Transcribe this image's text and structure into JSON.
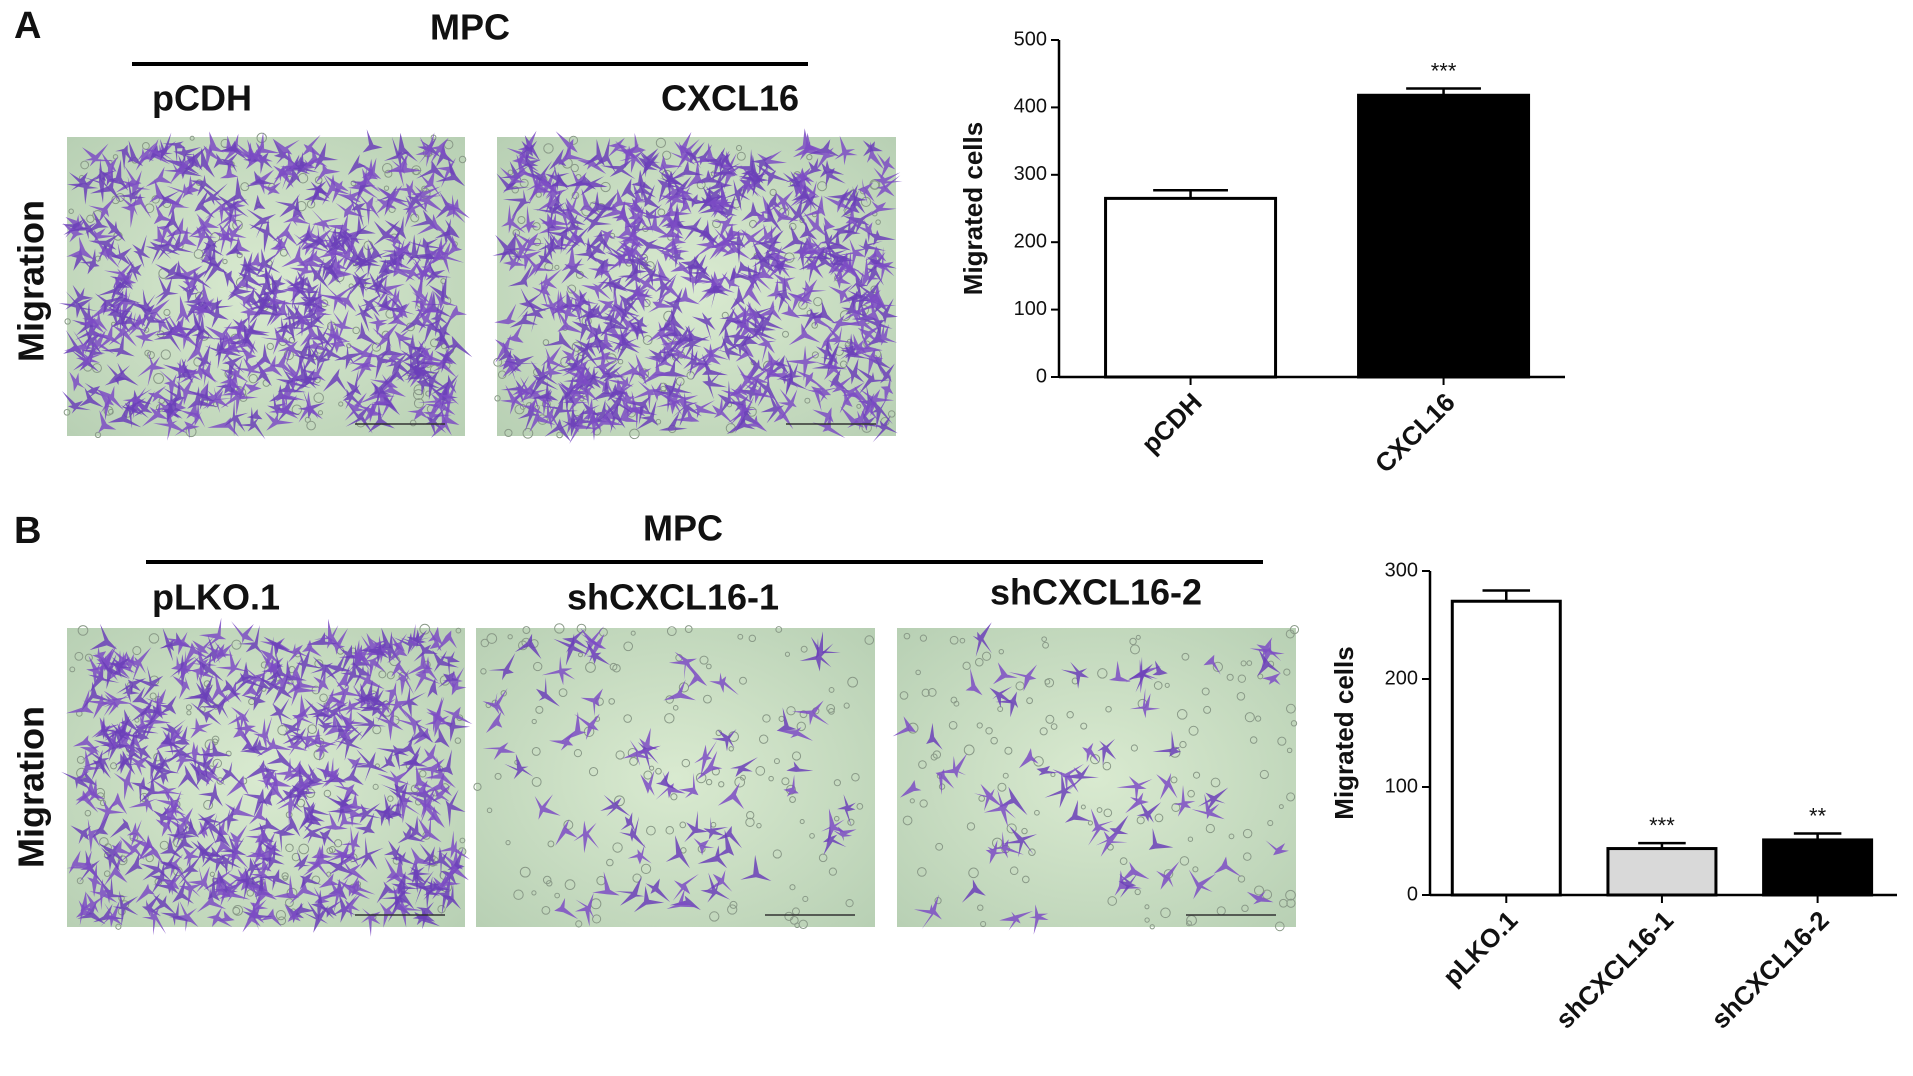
{
  "panels": [
    {
      "letter": "A",
      "group": "MPC",
      "images": [
        "pCDH",
        "CXCL16"
      ],
      "row_label": "Migration"
    },
    {
      "letter": "B",
      "group": "MPC",
      "images": [
        "pLKO.1",
        "shCXCL16-1",
        "shCXCL16-2"
      ],
      "row_label": "Migration"
    }
  ],
  "chart_data": [
    {
      "type": "bar",
      "y_label": "Migrated cells",
      "categories": [
        "pCDH",
        "CXCL16"
      ],
      "values": [
        265,
        418
      ],
      "errors": [
        12,
        10
      ],
      "colors": [
        "#ffffff",
        "#000000"
      ],
      "annotations": [
        null,
        "***"
      ],
      "ylim": [
        0,
        500
      ],
      "yticks": [
        0,
        100,
        200,
        300,
        400,
        500
      ]
    },
    {
      "type": "bar",
      "y_label": "Migrated cells",
      "categories": [
        "pLKO.1",
        "shCXCL16-1",
        "shCXCL16-2"
      ],
      "values": [
        272,
        43,
        51
      ],
      "errors": [
        10,
        5,
        6
      ],
      "colors": [
        "#ffffff",
        "#d9d9d9",
        "#000000"
      ],
      "annotations": [
        null,
        "***",
        "**"
      ],
      "ylim": [
        0,
        300
      ],
      "yticks": [
        0,
        100,
        200,
        300
      ]
    }
  ]
}
